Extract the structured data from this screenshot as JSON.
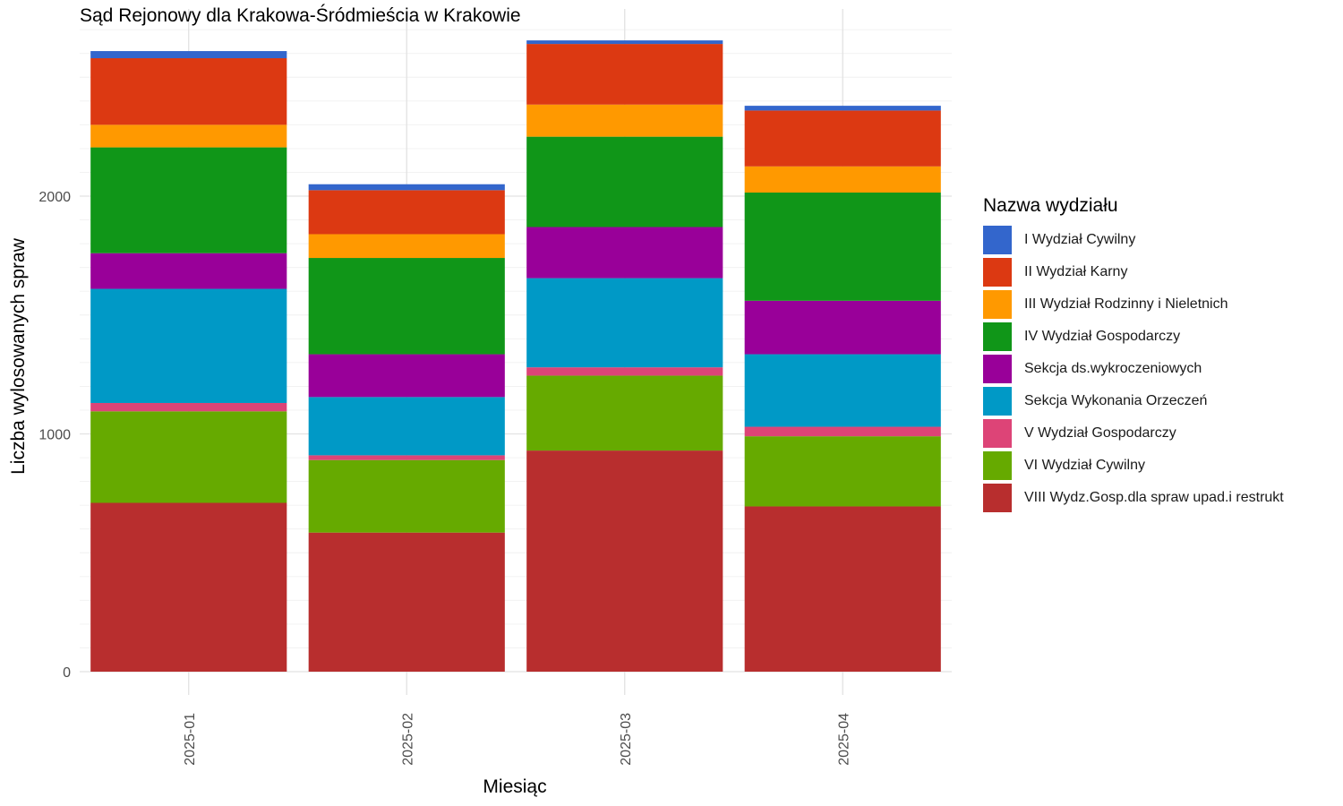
{
  "chart_data": {
    "type": "bar",
    "stacked": true,
    "title": "Sąd Rejonowy dla Krakowa-Śródmieścia w Krakowie",
    "xlabel": "Miesiąc",
    "ylabel": "Liczba wylosowanych spraw",
    "ylim": [
      0,
      2800
    ],
    "yticks": [
      0,
      1000,
      2000
    ],
    "grid": true,
    "legend_title": "Nazwa wydziału",
    "legend_position": "right",
    "categories": [
      "2025-01",
      "2025-02",
      "2025-03",
      "2025-04"
    ],
    "series": [
      {
        "name": "VIII Wydz.Gosp.dla spraw upad.i restrukt",
        "color": "#b82e2e",
        "values": [
          710,
          585,
          930,
          695
        ]
      },
      {
        "name": "VI Wydział Cywilny",
        "color": "#66aa00",
        "values": [
          385,
          305,
          315,
          295
        ]
      },
      {
        "name": "V Wydział Gospodarczy",
        "color": "#dd4477",
        "values": [
          35,
          20,
          35,
          40
        ]
      },
      {
        "name": "Sekcja Wykonania Orzeczeń",
        "color": "#0099c6",
        "values": [
          480,
          245,
          375,
          305
        ]
      },
      {
        "name": "Sekcja ds.wykroczeniowych",
        "color": "#990099",
        "values": [
          150,
          180,
          215,
          225
        ]
      },
      {
        "name": "IV Wydział Gospodarczy",
        "color": "#109618",
        "values": [
          445,
          405,
          380,
          455
        ]
      },
      {
        "name": "III Wydział Rodzinny i Nieletnich",
        "color": "#ff9900",
        "values": [
          95,
          100,
          135,
          110
        ]
      },
      {
        "name": "II Wydział Karny",
        "color": "#dc3912",
        "values": [
          280,
          185,
          255,
          235
        ]
      },
      {
        "name": "I Wydział Cywilny",
        "color": "#3366cc",
        "values": [
          30,
          25,
          15,
          20
        ]
      }
    ],
    "legend_order": [
      "I Wydział Cywilny",
      "II Wydział Karny",
      "III Wydział Rodzinny i Nieletnich",
      "IV Wydział Gospodarczy",
      "Sekcja ds.wykroczeniowych",
      "Sekcja Wykonania Orzeczeń",
      "V Wydział Gospodarczy",
      "VI Wydział Cywilny",
      "VIII Wydz.Gosp.dla spraw upad.i restrukt"
    ]
  }
}
